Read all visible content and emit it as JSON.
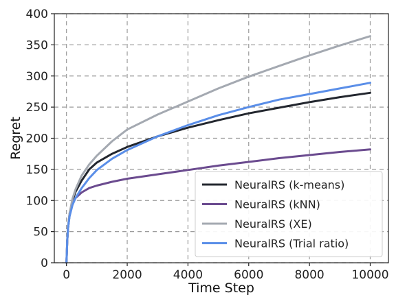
{
  "chart_data": {
    "type": "line",
    "title": "",
    "xlabel": "Time Step",
    "ylabel": "Regret",
    "xlim": [
      -400,
      10600
    ],
    "ylim": [
      0,
      400
    ],
    "xticks": [
      0,
      2000,
      4000,
      6000,
      8000,
      10000
    ],
    "yticks": [
      0,
      50,
      100,
      150,
      200,
      250,
      300,
      350,
      400
    ],
    "grid": true,
    "legend_position": "lower-right",
    "x": [
      0,
      25,
      50,
      100,
      200,
      300,
      500,
      750,
      1000,
      1500,
      2000,
      3000,
      4000,
      5000,
      6000,
      7000,
      8000,
      9000,
      10000
    ],
    "series": [
      {
        "name": "NeuralRS (k-means)",
        "color": "#23272f",
        "values": [
          0,
          35,
          55,
          75,
          100,
          114,
          132,
          150,
          161,
          175,
          186,
          203,
          217,
          229,
          240,
          249,
          258,
          266,
          273
        ]
      },
      {
        "name": "NeuralRS (kNN)",
        "color": "#6b4b8f",
        "values": [
          0,
          35,
          55,
          78,
          96,
          104,
          113,
          120,
          124,
          130,
          135,
          142,
          149,
          156,
          162,
          168,
          173,
          178,
          182
        ]
      },
      {
        "name": "NeuralRS (XE)",
        "color": "#a4a9b1",
        "values": [
          0,
          38,
          57,
          79,
          103,
          118,
          140,
          158,
          172,
          195,
          214,
          238,
          259,
          280,
          299,
          316,
          333,
          349,
          364
        ]
      },
      {
        "name": "NeuralRS (Trial ratio)",
        "color": "#5a8ee8",
        "values": [
          0,
          36,
          55,
          74,
          93,
          104,
          120,
          136,
          149,
          167,
          181,
          203,
          221,
          237,
          250,
          262,
          271,
          280,
          289
        ]
      }
    ]
  }
}
